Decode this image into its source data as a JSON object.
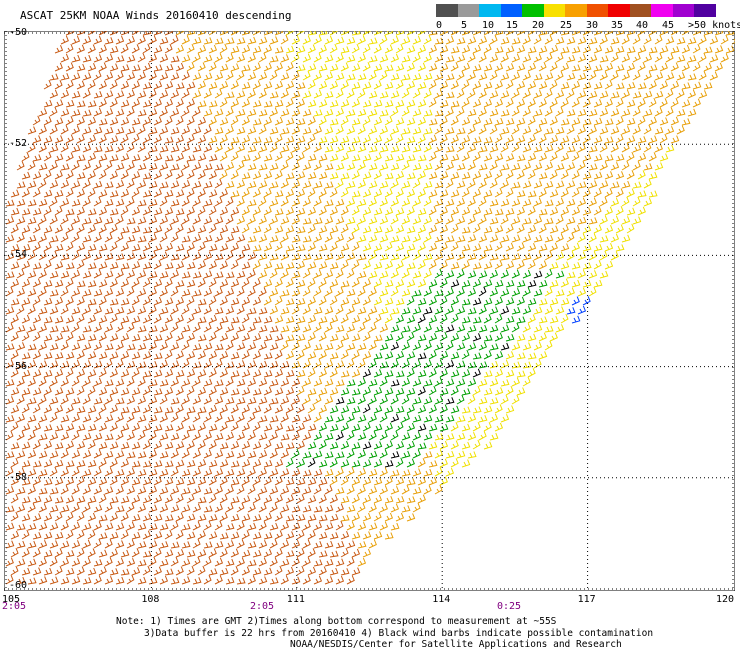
{
  "header": {
    "title": "ASCAT 25KM NOAA Winds 20160410 descending"
  },
  "colorbar": {
    "labels": [
      "0",
      "5",
      "10",
      "15",
      "20",
      "25",
      "30",
      "35",
      "40",
      "45",
      ">50 knots"
    ],
    "colors": [
      "#505050",
      "#9a9a9a",
      "#00b8f0",
      "#0060ff",
      "#00c000",
      "#f8e000",
      "#f8a000",
      "#f05000",
      "#f00000",
      "#a05020",
      "#f000f0",
      "#a000d0",
      "#5000a0"
    ]
  },
  "map": {
    "latitude_labels": [
      "-50",
      "-52",
      "-54",
      "-56",
      "-58",
      "-60"
    ],
    "longitude_labels": [
      "105",
      "108",
      "111",
      "114",
      "117",
      "120"
    ],
    "time_labels": [
      "2:05",
      "2:05",
      "0:25"
    ],
    "lat_range": [
      -60,
      -50
    ],
    "lon_range": [
      105,
      120
    ],
    "wind_colors": {
      "strong": "#c85a14",
      "moderate": "#e8a00a",
      "light": "#f0e000",
      "weak": "#00a000",
      "calm": "#0040ff",
      "contaminated": "#000000"
    }
  },
  "footer": {
    "note_line1": "Note: 1) Times are GMT 2)Times along bottom correspond to measurement at ~55S",
    "note_line2": "3)Data buffer is 22 hrs from 20160410 4) Black wind barbs indicate possible contamination",
    "note_line3": "NOAA/NESDIS/Center for Satellite Applications and Research"
  }
}
